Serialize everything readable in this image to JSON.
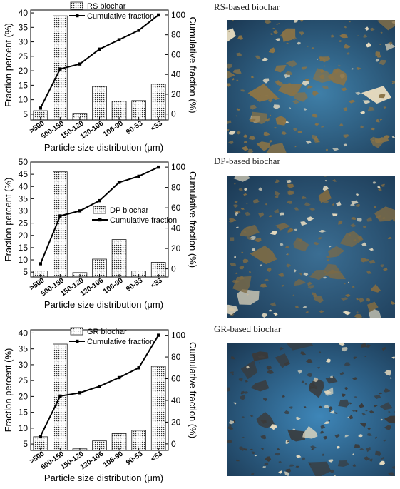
{
  "figure": {
    "x_categories": [
      ">500",
      "500-150",
      "150-120",
      "120-106",
      "106-90",
      "90-53",
      "<53"
    ]
  },
  "chart_data": [
    {
      "type": "bar",
      "title": "",
      "xlabel": "Particle size distribution (μm)",
      "ylabel": "Fraction percent (%)",
      "y2label": "Cumulative fraction (%)",
      "categories": [
        ">500",
        "500-150",
        "150-120",
        "120-106",
        "106-90",
        "90-53",
        "<53"
      ],
      "ylim": [
        3,
        41
      ],
      "yticks": [
        5,
        10,
        15,
        20,
        25,
        30,
        35,
        40
      ],
      "y2lim": [
        -6,
        105
      ],
      "y2ticks": [
        0,
        20,
        40,
        60,
        80,
        100
      ],
      "legend_position": "top-center",
      "series": [
        {
          "name": "RS biochar",
          "kind": "bar",
          "axis": "left",
          "values": [
            6.2,
            39.0,
            5.3,
            14.6,
            9.5,
            9.7,
            15.4
          ]
        },
        {
          "name": "Cumulative fraction",
          "kind": "line",
          "axis": "right",
          "values": [
            6.0,
            45.5,
            50.5,
            65.5,
            75.0,
            84.5,
            100.0
          ]
        }
      ]
    },
    {
      "type": "bar",
      "title": "",
      "xlabel": "Particle size distribution (μm)",
      "ylabel": "Fraction percent (%)",
      "y2label": "Cumulative fraction (%)",
      "categories": [
        ">500",
        "500-150",
        "150-120",
        "120-106",
        "106-90",
        "90-53",
        "<53"
      ],
      "ylim": [
        3,
        50
      ],
      "yticks": [
        5,
        10,
        15,
        20,
        25,
        30,
        35,
        40,
        45,
        50
      ],
      "y2lim": [
        -8,
        105
      ],
      "y2ticks": [
        0,
        20,
        40,
        60,
        80,
        100
      ],
      "legend_position": "center-right",
      "series": [
        {
          "name": "DP biochar",
          "kind": "bar",
          "axis": "left",
          "values": [
            5.5,
            46.0,
            4.8,
            10.3,
            18.3,
            5.5,
            9.0
          ]
        },
        {
          "name": "Cumulative fraction",
          "kind": "line",
          "axis": "right",
          "values": [
            5.0,
            52.0,
            57.0,
            67.0,
            85.0,
            91.0,
            100.0
          ]
        }
      ]
    },
    {
      "type": "bar",
      "title": "",
      "xlabel": "Particle size distribution (μm)",
      "ylabel": "Fraction percent (%)",
      "y2label": "Cumulative fraction (%)",
      "categories": [
        ">500",
        "500-150",
        "150-120",
        "120-106",
        "106-90",
        "90-53",
        "<53"
      ],
      "ylim": [
        3,
        41
      ],
      "yticks": [
        5,
        10,
        15,
        20,
        25,
        30,
        35,
        40
      ],
      "y2lim": [
        -6,
        105
      ],
      "y2ticks": [
        0,
        20,
        40,
        60,
        80,
        100
      ],
      "legend_position": "top-center",
      "series": [
        {
          "name": "GR biochar",
          "kind": "bar",
          "axis": "left",
          "values": [
            7.3,
            36.5,
            3.5,
            6.0,
            8.3,
            9.3,
            29.5
          ]
        },
        {
          "name": "Cumulative fraction",
          "kind": "line",
          "axis": "right",
          "values": [
            7.0,
            44.0,
            47.0,
            53.0,
            61.0,
            70.0,
            100.0
          ]
        }
      ]
    }
  ],
  "photos": [
    {
      "caption": "RS-based biochar",
      "bg": "#3f7fa8",
      "particle_color": "#8a7346"
    },
    {
      "caption": "DP-based biochar",
      "bg": "#3b6e93",
      "particle_color": "#7d6a44"
    },
    {
      "caption": "GR-based biochar",
      "bg": "#3e86b8",
      "particle_color": "#3a3a3a"
    }
  ]
}
